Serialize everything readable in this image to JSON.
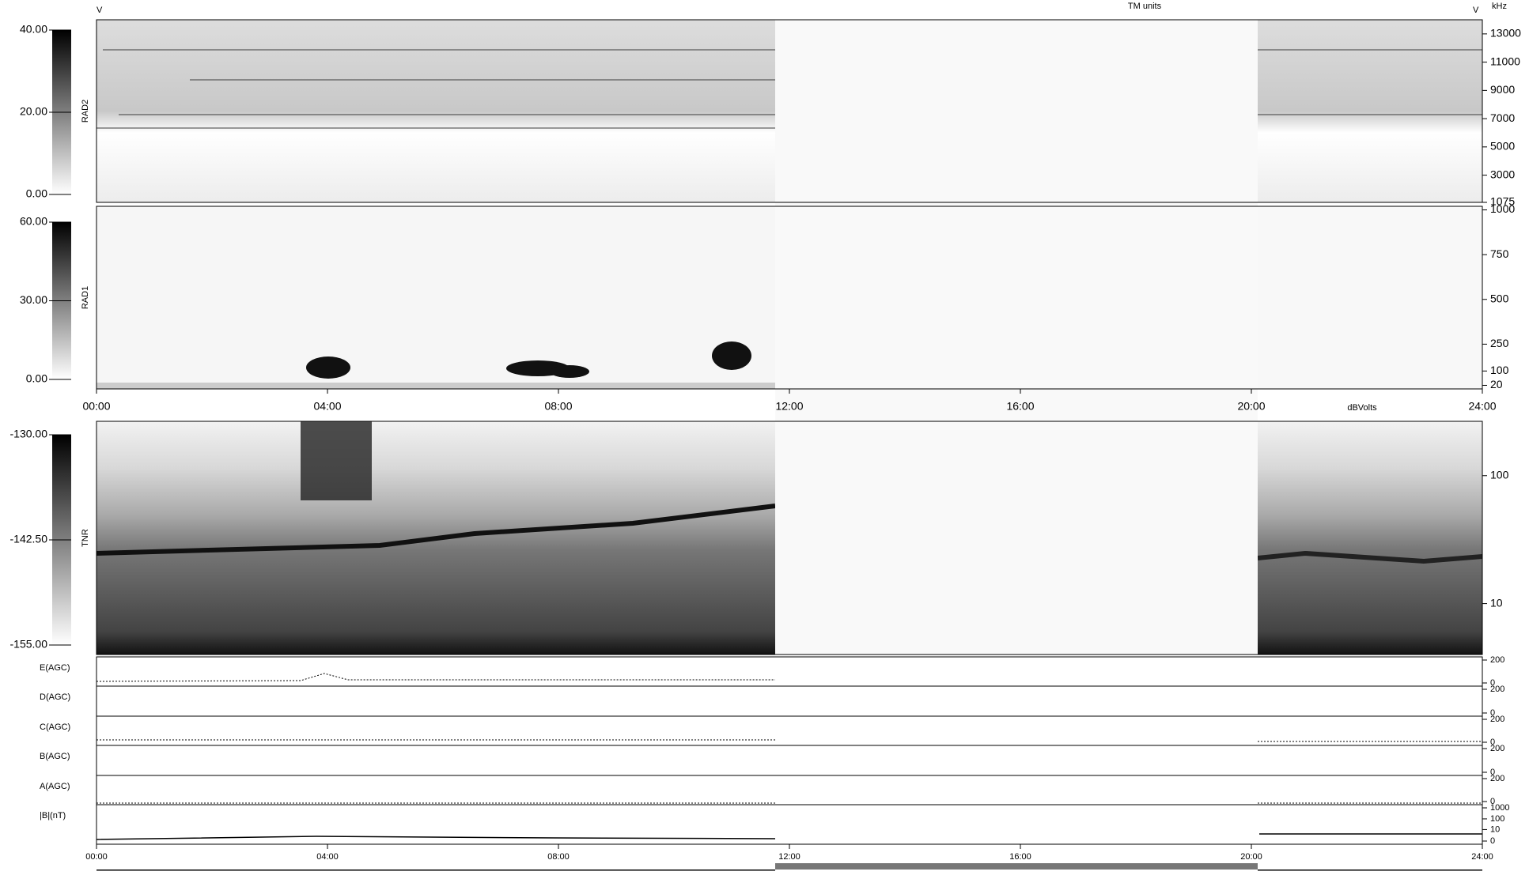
{
  "chart_data": [
    {
      "type": "spectrogram",
      "ylabel": "RAD2",
      "unit": "kHz",
      "colorbar_unit": "TM units",
      "corner_label": "V",
      "colorbar_lim": [
        0,
        40
      ],
      "colorbar_ticks": [
        {
          "value": 0,
          "label": "0.00"
        },
        {
          "value": 20,
          "label": "20.00"
        },
        {
          "value": 40,
          "label": "40.00"
        }
      ],
      "ylim": [
        1075,
        14000
      ],
      "yticks": [
        1075,
        3000,
        5000,
        7000,
        9000,
        11000,
        13000
      ]
    },
    {
      "type": "spectrogram",
      "ylabel": "RAD1",
      "colorbar_lim": [
        0,
        60
      ],
      "colorbar_ticks": [
        {
          "value": 0,
          "label": "0.00"
        },
        {
          "value": 30,
          "label": "30.00"
        },
        {
          "value": 60,
          "label": "60.00"
        }
      ],
      "ylim": [
        0,
        1020
      ],
      "yticks": [
        20,
        100,
        250,
        500,
        750,
        1000
      ],
      "xlim": [
        0,
        24
      ],
      "xticks": [
        {
          "value": 0,
          "label": "00:00"
        },
        {
          "value": 4,
          "label": "04:00"
        },
        {
          "value": 8,
          "label": "08:00"
        },
        {
          "value": 12,
          "label": "12:00"
        },
        {
          "value": 16,
          "label": "16:00"
        },
        {
          "value": 20,
          "label": "20:00"
        },
        {
          "value": 24,
          "label": "24:00"
        }
      ]
    },
    {
      "type": "spectrogram",
      "ylabel": "TNR",
      "colorbar_unit": "dBVolts",
      "log": true,
      "colorbar_lim": [
        -155,
        -130
      ],
      "colorbar_ticks": [
        {
          "value": -155,
          "label": "-155.00"
        },
        {
          "value": -142.5,
          "label": "-142.50"
        },
        {
          "value": -130,
          "label": "-130.00"
        }
      ],
      "ylim": [
        4,
        266
      ],
      "yticks": [
        10,
        100
      ]
    },
    {
      "type": "line",
      "ylabel": "E(AGC)",
      "ylim": [
        0,
        200
      ],
      "yticks": [
        0,
        200
      ]
    },
    {
      "type": "line",
      "ylabel": "D(AGC)",
      "ylim": [
        0,
        200
      ],
      "yticks": [
        0,
        200
      ]
    },
    {
      "type": "line",
      "ylabel": "C(AGC)",
      "ylim": [
        0,
        200
      ],
      "yticks": [
        0,
        200
      ]
    },
    {
      "type": "line",
      "ylabel": "B(AGC)",
      "ylim": [
        0,
        200
      ],
      "yticks": [
        0,
        200
      ]
    },
    {
      "type": "line",
      "ylabel": "A(AGC)",
      "ylim": [
        0,
        200
      ],
      "yticks": [
        0,
        200
      ]
    },
    {
      "type": "line",
      "ylabel": "|B|(nT)",
      "yscale": "log1p",
      "ylim": [
        0,
        1000
      ],
      "yticks": [
        0,
        10,
        100,
        1000
      ],
      "xlim": [
        0,
        24
      ],
      "xticks": [
        {
          "value": 0,
          "label": "00:00"
        },
        {
          "value": 4,
          "label": "04:00"
        },
        {
          "value": 8,
          "label": "08:00"
        },
        {
          "value": 12,
          "label": "12:00"
        },
        {
          "value": 16,
          "label": "16:00"
        },
        {
          "value": 20,
          "label": "20:00"
        },
        {
          "value": 24,
          "label": "24:00"
        }
      ]
    }
  ]
}
